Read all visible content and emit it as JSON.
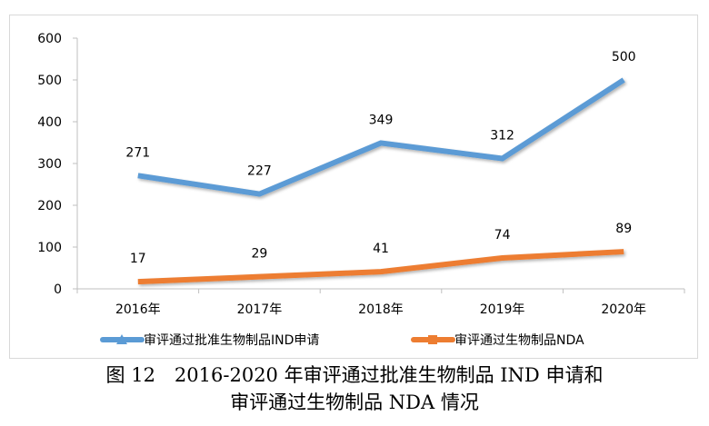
{
  "chart_data": {
    "type": "line",
    "title": "",
    "xlabel": "",
    "ylabel": "",
    "categories": [
      "2016年",
      "2017年",
      "2018年",
      "2019年",
      "2020年"
    ],
    "ylim": [
      0,
      600
    ],
    "yticks": [
      0,
      100,
      200,
      300,
      400,
      500,
      600
    ],
    "ytick_labels": [
      "0",
      "100",
      "200",
      "300",
      "400",
      "500",
      "600"
    ],
    "grid": false,
    "legend_position": "bottom",
    "series": [
      {
        "name": "审评通过批准生物制品IND申请",
        "color": "#5B9BD5",
        "marker": "triangle",
        "values": [
          271,
          227,
          349,
          312,
          500
        ],
        "data_labels": [
          "271",
          "227",
          "349",
          "312",
          "500"
        ]
      },
      {
        "name": "审评通过生物制品NDA",
        "color": "#ED7D31",
        "marker": "square",
        "values": [
          17,
          29,
          41,
          74,
          89
        ],
        "data_labels": [
          "17",
          "29",
          "41",
          "74",
          "89"
        ]
      }
    ]
  },
  "caption": {
    "line1": "图 12　2016-2020 年审评通过批准生物制品 IND 申请和",
    "line2": "审评通过生物制品 NDA 情况"
  }
}
